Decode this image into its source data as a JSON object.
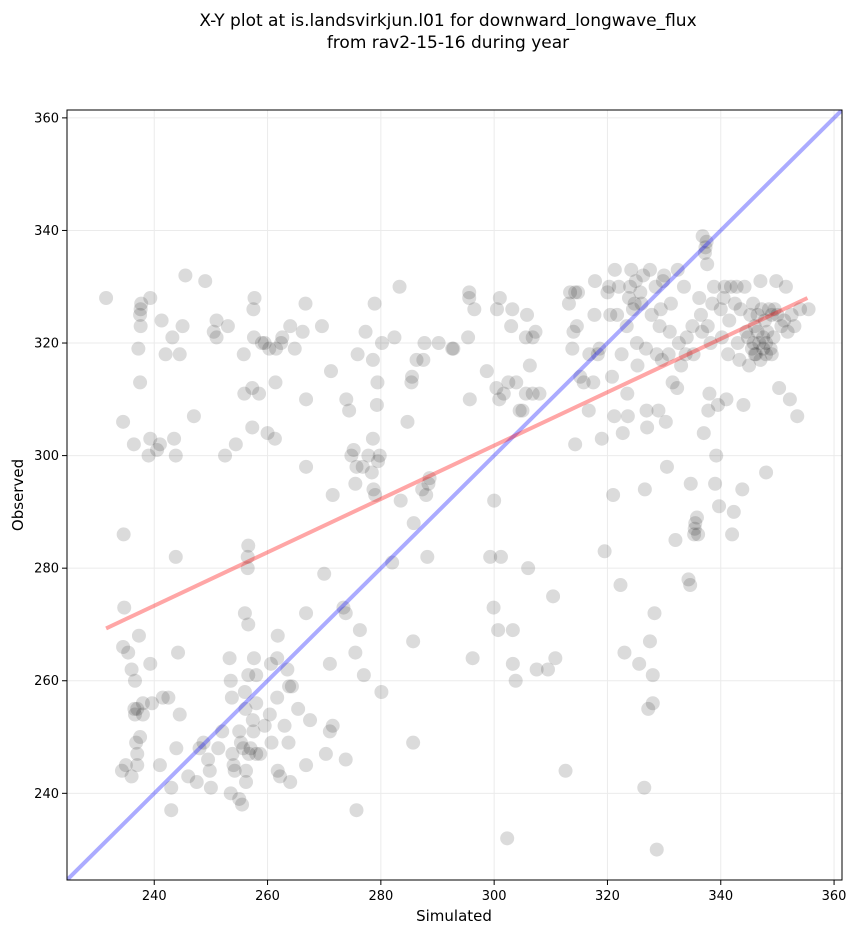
{
  "chart_data": {
    "type": "scatter",
    "title_line1": "X-Y plot at is.landsvirkjun.l01 for downward_longwave_flux",
    "title_line2": "from rav2-15-16 during year",
    "xlabel": "Simulated",
    "ylabel": "Observed",
    "xlim": [
      224.6,
      361.4
    ],
    "ylim": [
      224.6,
      361.4
    ],
    "xticks": [
      240,
      260,
      280,
      300,
      320,
      340,
      360
    ],
    "yticks": [
      240,
      260,
      280,
      300,
      320,
      340,
      360
    ],
    "grid": true,
    "colors": {
      "points": "#000000",
      "fit_line": "#ff0000",
      "identity_line": "#0000ff"
    },
    "fit_line": {
      "x": [
        231.5,
        355.3
      ],
      "y": [
        269.3,
        328.0
      ]
    },
    "identity_line": {
      "x": [
        224.6,
        361.4
      ],
      "y": [
        224.6,
        361.4
      ]
    },
    "points": [
      [
        231.5,
        328
      ],
      [
        234.5,
        306
      ],
      [
        234.6,
        286
      ],
      [
        234.7,
        273
      ],
      [
        234.5,
        266
      ],
      [
        235.4,
        265
      ],
      [
        236,
        262
      ],
      [
        236.5,
        255
      ],
      [
        236.6,
        254
      ],
      [
        237,
        255
      ],
      [
        236.6,
        260
      ],
      [
        237.3,
        268
      ],
      [
        237.5,
        250
      ],
      [
        237,
        247
      ],
      [
        236.8,
        249
      ],
      [
        238,
        254
      ],
      [
        238,
        256
      ],
      [
        234.3,
        244
      ],
      [
        235,
        245
      ],
      [
        236,
        243
      ],
      [
        237,
        245
      ],
      [
        236.4,
        302
      ],
      [
        237.2,
        319
      ],
      [
        237.5,
        313
      ],
      [
        237.6,
        323
      ],
      [
        237.5,
        325
      ],
      [
        237.6,
        326
      ],
      [
        237.7,
        327
      ],
      [
        239.3,
        328
      ],
      [
        239.3,
        303
      ],
      [
        239,
        300
      ],
      [
        239.3,
        263
      ],
      [
        239.6,
        256
      ],
      [
        240.5,
        301
      ],
      [
        241,
        302
      ],
      [
        241.3,
        324
      ],
      [
        242,
        318
      ],
      [
        242.5,
        257
      ],
      [
        241.5,
        257
      ],
      [
        241,
        245
      ],
      [
        243,
        241
      ],
      [
        243,
        237
      ],
      [
        243.5,
        303
      ],
      [
        243.8,
        300
      ],
      [
        243.8,
        282
      ],
      [
        244.2,
        265
      ],
      [
        244.5,
        318
      ],
      [
        245,
        323
      ],
      [
        244.5,
        254
      ],
      [
        243.9,
        248
      ],
      [
        243.2,
        321
      ],
      [
        245.5,
        332
      ],
      [
        246,
        243
      ],
      [
        247,
        307
      ],
      [
        247.5,
        242
      ],
      [
        248,
        248
      ],
      [
        249,
        331
      ],
      [
        248.7,
        249
      ],
      [
        249.5,
        246
      ],
      [
        249.8,
        244
      ],
      [
        250,
        241
      ],
      [
        250.5,
        322
      ],
      [
        251,
        324
      ],
      [
        251,
        321
      ],
      [
        251.3,
        248
      ],
      [
        252,
        251
      ],
      [
        252.5,
        300
      ],
      [
        253,
        323
      ],
      [
        253.3,
        264
      ],
      [
        253.5,
        260
      ],
      [
        253.7,
        257
      ],
      [
        253.8,
        247
      ],
      [
        253.5,
        240
      ],
      [
        254,
        245
      ],
      [
        254.2,
        244
      ],
      [
        254.4,
        302
      ],
      [
        255,
        239
      ],
      [
        255.5,
        238
      ],
      [
        255,
        251
      ],
      [
        255.3,
        249
      ],
      [
        255.7,
        248
      ],
      [
        255.8,
        318
      ],
      [
        255.9,
        311
      ],
      [
        256,
        272
      ],
      [
        256,
        258
      ],
      [
        256.1,
        255
      ],
      [
        256.5,
        282
      ],
      [
        256.5,
        280
      ],
      [
        256.6,
        284
      ],
      [
        256.6,
        270
      ],
      [
        256.6,
        261
      ],
      [
        256.7,
        247
      ],
      [
        256.2,
        244
      ],
      [
        256.2,
        242
      ],
      [
        257,
        248
      ],
      [
        257.3,
        312
      ],
      [
        257.3,
        305
      ],
      [
        257.5,
        326
      ],
      [
        257.7,
        328
      ],
      [
        257.6,
        321
      ],
      [
        257.6,
        264
      ],
      [
        257.4,
        253
      ],
      [
        257.5,
        251
      ],
      [
        258,
        261
      ],
      [
        258,
        256
      ],
      [
        258,
        247
      ],
      [
        258.5,
        311
      ],
      [
        258.7,
        247
      ],
      [
        259,
        320
      ],
      [
        259.5,
        320
      ],
      [
        259.5,
        252
      ],
      [
        260,
        304
      ],
      [
        260.3,
        319
      ],
      [
        260.6,
        263
      ],
      [
        260.4,
        254
      ],
      [
        260.7,
        249
      ],
      [
        261.3,
        303
      ],
      [
        261.4,
        313
      ],
      [
        261.5,
        319
      ],
      [
        261.8,
        268
      ],
      [
        261.7,
        264
      ],
      [
        261.7,
        257
      ],
      [
        261.8,
        244
      ],
      [
        262.2,
        243
      ],
      [
        262.6,
        321
      ],
      [
        262.4,
        320
      ],
      [
        263,
        252
      ],
      [
        263.5,
        262
      ],
      [
        263.7,
        249
      ],
      [
        263.8,
        259
      ],
      [
        264,
        242
      ],
      [
        264,
        323
      ],
      [
        264.3,
        259
      ],
      [
        264.8,
        319
      ],
      [
        265.4,
        255
      ],
      [
        266.2,
        322
      ],
      [
        266.7,
        327
      ],
      [
        266.8,
        310
      ],
      [
        266.8,
        298
      ],
      [
        266.8,
        272
      ],
      [
        266.8,
        245
      ],
      [
        267.5,
        253
      ],
      [
        269.6,
        323
      ],
      [
        270,
        279
      ],
      [
        270.3,
        247
      ],
      [
        271,
        263
      ],
      [
        271,
        251
      ],
      [
        271.2,
        315
      ],
      [
        271.5,
        252
      ],
      [
        271.5,
        293
      ],
      [
        273.4,
        273
      ],
      [
        273.8,
        246
      ],
      [
        273.8,
        272
      ],
      [
        273.9,
        310
      ],
      [
        274.4,
        308
      ],
      [
        274.8,
        300
      ],
      [
        275.2,
        301
      ],
      [
        275.5,
        295
      ],
      [
        275.5,
        265
      ],
      [
        275.7,
        237
      ],
      [
        275.7,
        298
      ],
      [
        275.9,
        318
      ],
      [
        276.3,
        269
      ],
      [
        276.8,
        298
      ],
      [
        277,
        261
      ],
      [
        277.3,
        322
      ],
      [
        277.8,
        300
      ],
      [
        278.4,
        297
      ],
      [
        278.6,
        317
      ],
      [
        278.6,
        303
      ],
      [
        278.7,
        294
      ],
      [
        278.9,
        327
      ],
      [
        279,
        293
      ],
      [
        279.3,
        309
      ],
      [
        279.4,
        313
      ],
      [
        279.5,
        299
      ],
      [
        279.8,
        300
      ],
      [
        280.1,
        258
      ],
      [
        280.2,
        320
      ],
      [
        282,
        281
      ],
      [
        282.4,
        321
      ],
      [
        283.3,
        330
      ],
      [
        283.5,
        292
      ],
      [
        284.7,
        306
      ],
      [
        285.4,
        313
      ],
      [
        285.5,
        314
      ],
      [
        285.7,
        267
      ],
      [
        285.7,
        249
      ],
      [
        285.8,
        288
      ],
      [
        286.3,
        317
      ],
      [
        287.3,
        294
      ],
      [
        287.5,
        317
      ],
      [
        287.7,
        320
      ],
      [
        288,
        293
      ],
      [
        288.2,
        282
      ],
      [
        288.4,
        295
      ],
      [
        288.6,
        296
      ],
      [
        290.2,
        320
      ],
      [
        292.6,
        319
      ],
      [
        292.8,
        319
      ],
      [
        295.4,
        321
      ],
      [
        295.6,
        328
      ],
      [
        295.6,
        329
      ],
      [
        295.7,
        310
      ],
      [
        296.2,
        264
      ],
      [
        296.5,
        326
      ],
      [
        298.7,
        315
      ],
      [
        299.3,
        282
      ],
      [
        299.9,
        273
      ],
      [
        300,
        292
      ],
      [
        300.4,
        312
      ],
      [
        300.5,
        326
      ],
      [
        300.7,
        269
      ],
      [
        300.9,
        310
      ],
      [
        301,
        328
      ],
      [
        301.2,
        282
      ],
      [
        301.7,
        311
      ],
      [
        302.3,
        232
      ],
      [
        302.5,
        313
      ],
      [
        303,
        323
      ],
      [
        303.2,
        326
      ],
      [
        303.3,
        269
      ],
      [
        303.3,
        263
      ],
      [
        303.8,
        260
      ],
      [
        303.9,
        313
      ],
      [
        304.5,
        308
      ],
      [
        305,
        308
      ],
      [
        305.6,
        311
      ],
      [
        305.6,
        321
      ],
      [
        305.8,
        325
      ],
      [
        306,
        280
      ],
      [
        306.3,
        316
      ],
      [
        306.8,
        311
      ],
      [
        306.8,
        321
      ],
      [
        307.3,
        322
      ],
      [
        307.5,
        262
      ],
      [
        308,
        311
      ],
      [
        309.5,
        262
      ],
      [
        310.4,
        275
      ],
      [
        310.8,
        264
      ],
      [
        312.6,
        244
      ],
      [
        313.2,
        327
      ],
      [
        313.4,
        329
      ],
      [
        313.8,
        319
      ],
      [
        314,
        322
      ],
      [
        314.3,
        302
      ],
      [
        314.3,
        329
      ],
      [
        314.6,
        323
      ],
      [
        314.8,
        329
      ],
      [
        315.2,
        314
      ],
      [
        315.8,
        313
      ],
      [
        316.7,
        308
      ],
      [
        316.8,
        318
      ],
      [
        317.5,
        313
      ],
      [
        317.7,
        325
      ],
      [
        317.8,
        331
      ],
      [
        318.3,
        318
      ],
      [
        318.6,
        319
      ],
      [
        319,
        303
      ],
      [
        319.5,
        283
      ],
      [
        320,
        329
      ],
      [
        320.3,
        330
      ],
      [
        320.5,
        325
      ],
      [
        320.8,
        314
      ],
      [
        321,
        293
      ],
      [
        321.2,
        307
      ],
      [
        321.3,
        333
      ],
      [
        321.7,
        325
      ],
      [
        322,
        330
      ],
      [
        322.3,
        277
      ],
      [
        322.5,
        318
      ],
      [
        322.7,
        304
      ],
      [
        323,
        265
      ],
      [
        323.4,
        323
      ],
      [
        323.5,
        311
      ],
      [
        323.6,
        307
      ],
      [
        323.8,
        328
      ],
      [
        324,
        330
      ],
      [
        324.2,
        333
      ],
      [
        324.5,
        326
      ],
      [
        324.8,
        327
      ],
      [
        325,
        331
      ],
      [
        325.2,
        320
      ],
      [
        325.3,
        316
      ],
      [
        325.6,
        263
      ],
      [
        325.8,
        329
      ],
      [
        326,
        327
      ],
      [
        326.3,
        332
      ],
      [
        326.5,
        241
      ],
      [
        326.6,
        294
      ],
      [
        326.8,
        319
      ],
      [
        326.9,
        308
      ],
      [
        327,
        305
      ],
      [
        327.2,
        255
      ],
      [
        327.5,
        333
      ],
      [
        327.5,
        267
      ],
      [
        327.8,
        325
      ],
      [
        328,
        256
      ],
      [
        328,
        261
      ],
      [
        328.3,
        272
      ],
      [
        328.5,
        330
      ],
      [
        328.7,
        230
      ],
      [
        328.7,
        318
      ],
      [
        329,
        308
      ],
      [
        329.2,
        323
      ],
      [
        329.4,
        326
      ],
      [
        329.6,
        317
      ],
      [
        329.8,
        331
      ],
      [
        330,
        332
      ],
      [
        330.3,
        306
      ],
      [
        330.5,
        298
      ],
      [
        330.8,
        318
      ],
      [
        331,
        322
      ],
      [
        331.2,
        327
      ],
      [
        331.5,
        313
      ],
      [
        332,
        285
      ],
      [
        332.3,
        312
      ],
      [
        332.4,
        333
      ],
      [
        332.6,
        320
      ],
      [
        333,
        316
      ],
      [
        333.5,
        330
      ],
      [
        333.8,
        318
      ],
      [
        334,
        321
      ],
      [
        334.3,
        278
      ],
      [
        334.6,
        277
      ],
      [
        334.7,
        295
      ],
      [
        335,
        323
      ],
      [
        335.2,
        318
      ],
      [
        335.3,
        286
      ],
      [
        335.4,
        287
      ],
      [
        335.5,
        288
      ],
      [
        335.8,
        289
      ],
      [
        336,
        286
      ],
      [
        336.2,
        328
      ],
      [
        336.5,
        325
      ],
      [
        336.7,
        322
      ],
      [
        336.8,
        339
      ],
      [
        337,
        304
      ],
      [
        337.2,
        336
      ],
      [
        337.3,
        337
      ],
      [
        337.5,
        338
      ],
      [
        337.6,
        334
      ],
      [
        337.7,
        323
      ],
      [
        337.8,
        308
      ],
      [
        338,
        311
      ],
      [
        338.2,
        320
      ],
      [
        338.5,
        327
      ],
      [
        338.8,
        330
      ],
      [
        339,
        295
      ],
      [
        339.2,
        300
      ],
      [
        339.5,
        309
      ],
      [
        339.7,
        291
      ],
      [
        340,
        326
      ],
      [
        340.2,
        321
      ],
      [
        340.5,
        328
      ],
      [
        340.7,
        330
      ],
      [
        341,
        310
      ],
      [
        341.3,
        318
      ],
      [
        341.5,
        324
      ],
      [
        341.8,
        330
      ],
      [
        342,
        286
      ],
      [
        342.3,
        290
      ],
      [
        342.5,
        327
      ],
      [
        342.8,
        330
      ],
      [
        343,
        320
      ],
      [
        343.3,
        317
      ],
      [
        343.5,
        326
      ],
      [
        343.8,
        294
      ],
      [
        344,
        309
      ],
      [
        344.2,
        330
      ],
      [
        344.5,
        322
      ],
      [
        345,
        316
      ],
      [
        345.2,
        325
      ],
      [
        345.5,
        319
      ],
      [
        345.7,
        327
      ],
      [
        346,
        323
      ],
      [
        346.2,
        318
      ],
      [
        346.5,
        325
      ],
      [
        346.8,
        320
      ],
      [
        347,
        331
      ],
      [
        347.2,
        326
      ],
      [
        347.5,
        319
      ],
      [
        347.8,
        324
      ],
      [
        348,
        297
      ],
      [
        348,
        318
      ],
      [
        348.2,
        322
      ],
      [
        348.5,
        326
      ],
      [
        348.8,
        319
      ],
      [
        349,
        325
      ],
      [
        349.3,
        321
      ],
      [
        349.5,
        326
      ],
      [
        349.8,
        331
      ],
      [
        350,
        325
      ],
      [
        350.3,
        312
      ],
      [
        350.7,
        323
      ],
      [
        351.2,
        324
      ],
      [
        351.5,
        330
      ],
      [
        351.8,
        322
      ],
      [
        352.2,
        310
      ],
      [
        352.5,
        325
      ],
      [
        353,
        323
      ],
      [
        353.5,
        307
      ],
      [
        354,
        326
      ],
      [
        355.5,
        326
      ],
      [
        346,
        318
      ],
      [
        347,
        317
      ],
      [
        347.5,
        321
      ],
      [
        346.5,
        322
      ],
      [
        348,
        320
      ],
      [
        349,
        318
      ],
      [
        345.8,
        320
      ],
      [
        344.8,
        321
      ]
    ]
  }
}
